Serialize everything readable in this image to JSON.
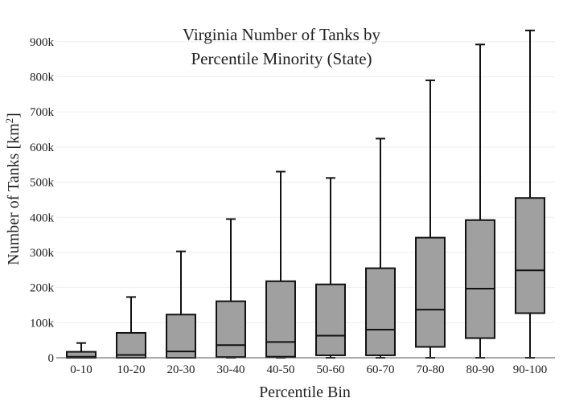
{
  "chart_data": {
    "type": "box",
    "title_lines": [
      "Virginia Number of Tanks by",
      "Percentile Minority (State)"
    ],
    "xlabel": "Percentile Bin",
    "ylabel_main": "Number of Tanks  [km",
    "ylabel_sup": "2",
    "ylabel_end": "]",
    "ylim": [
      0,
      950000
    ],
    "yticks": [
      0,
      100000,
      200000,
      300000,
      400000,
      500000,
      600000,
      700000,
      800000,
      900000
    ],
    "ytick_labels": [
      "0",
      "100k",
      "200k",
      "300k",
      "400k",
      "500k",
      "600k",
      "700k",
      "800k",
      "900k"
    ],
    "grid": true,
    "categories": [
      "0-10",
      "10-20",
      "20-30",
      "30-40",
      "40-50",
      "50-60",
      "60-70",
      "70-80",
      "80-90",
      "90-100"
    ],
    "boxes": [
      {
        "min": 0,
        "q1": 0,
        "median": 3000,
        "q3": 17000,
        "max": 42000
      },
      {
        "min": 0,
        "q1": 0,
        "median": 8000,
        "q3": 71000,
        "max": 173000
      },
      {
        "min": 0,
        "q1": 0,
        "median": 18000,
        "q3": 123000,
        "max": 303000
      },
      {
        "min": 0,
        "q1": 2000,
        "median": 36000,
        "q3": 161000,
        "max": 395000
      },
      {
        "min": 0,
        "q1": 3000,
        "median": 45000,
        "q3": 218000,
        "max": 530000
      },
      {
        "min": 0,
        "q1": 7000,
        "median": 63000,
        "q3": 209000,
        "max": 512000
      },
      {
        "min": 0,
        "q1": 7000,
        "median": 80000,
        "q3": 255000,
        "max": 624000
      },
      {
        "min": 0,
        "q1": 31000,
        "median": 137000,
        "q3": 342000,
        "max": 790000
      },
      {
        "min": 0,
        "q1": 56000,
        "median": 197000,
        "q3": 392000,
        "max": 892000
      },
      {
        "min": 0,
        "q1": 127000,
        "median": 249000,
        "q3": 455000,
        "max": 932000
      }
    ],
    "colors": {
      "box_fill": "#a0a0a0",
      "line": "#111111",
      "grid": "#eeeeee",
      "axis": "#555555"
    }
  }
}
